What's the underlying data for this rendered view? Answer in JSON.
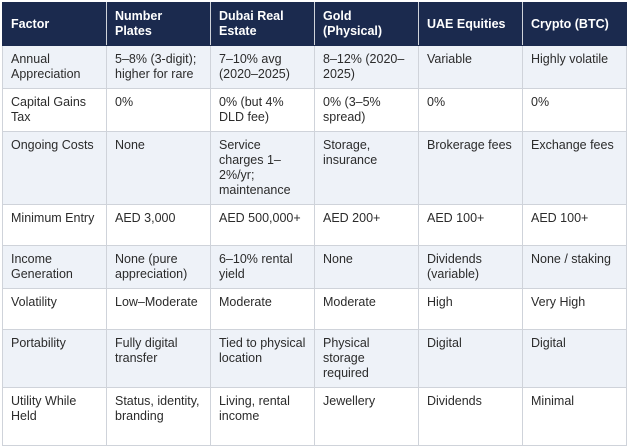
{
  "table": {
    "headers": [
      "Factor",
      "Number Plates",
      "Dubai Real Estate",
      "Gold (Physical)",
      "UAE Equities",
      "Crypto (BTC)"
    ],
    "rows": [
      [
        "Annual Appreciation",
        "5–8% (3-digit); higher for rare",
        "7–10% avg (2020–2025)",
        "8–12% (2020–2025)",
        "Variable",
        "Highly volatile"
      ],
      [
        "Capital Gains Tax",
        "0%",
        "0% (but 4% DLD fee)",
        "0% (3–5% spread)",
        "0%",
        "0%"
      ],
      [
        "Ongoing Costs",
        "None",
        "Service charges 1–2%/yr; maintenance",
        "Storage, insurance",
        "Brokerage fees",
        "Exchange fees"
      ],
      [
        "Minimum Entry",
        "AED 3,000",
        "AED 500,000+",
        "AED 200+",
        "AED 100+",
        "AED 100+"
      ],
      [
        "Income Generation",
        "None (pure appreciation)",
        "6–10% rental yield",
        "None",
        "Dividends (variable)",
        "None / staking"
      ],
      [
        "Volatility",
        "Low–Moderate",
        "Moderate",
        "Moderate",
        "High",
        "Very High"
      ],
      [
        "Portability",
        "Fully digital transfer",
        "Tied to physical location",
        "Physical storage required",
        "Digital",
        "Digital"
      ],
      [
        "Utility While Held",
        "Status, identity, branding",
        "Living, rental income",
        "Jewellery",
        "Dividends",
        "Minimal"
      ]
    ]
  },
  "colors": {
    "header_bg": "#1b2a4e",
    "header_text": "#ffffff",
    "alt_row_bg": "#eef2f8",
    "border": "#cfd3da"
  }
}
